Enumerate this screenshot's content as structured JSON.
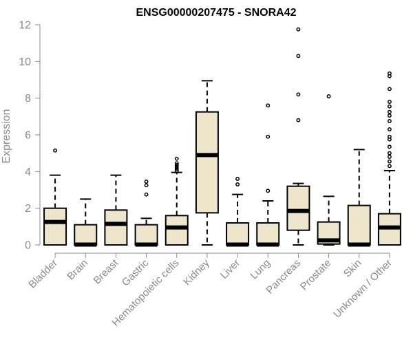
{
  "chart_data": {
    "type": "box",
    "title": "ENSG00000207475 - SNORA42",
    "xlabel": "",
    "ylabel": "Expression",
    "ylim": [
      0,
      12
    ],
    "yticks": [
      0,
      2,
      4,
      6,
      8,
      10,
      12
    ],
    "grid": false,
    "legend": "none",
    "box_fill": "#ede6cc",
    "box_stroke": "#000000",
    "categories": [
      "Bladder",
      "Brain",
      "Breast",
      "Gastric",
      "Hematopoietic cells",
      "Kidney",
      "Liver",
      "Lung",
      "Pancreas",
      "Prostate",
      "Skin",
      "Unknown / Other"
    ],
    "boxes": [
      {
        "category": "Bladder",
        "whisker_low": 0,
        "q1": 0,
        "median": 1.25,
        "q3": 2.0,
        "whisker_high": 3.8,
        "outliers": [
          5.15
        ]
      },
      {
        "category": "Brain",
        "whisker_low": 0,
        "q1": 0,
        "median": 0.02,
        "q3": 1.1,
        "whisker_high": 2.5,
        "outliers": []
      },
      {
        "category": "Breast",
        "whisker_low": 0,
        "q1": 0,
        "median": 1.15,
        "q3": 1.9,
        "whisker_high": 3.8,
        "outliers": []
      },
      {
        "category": "Gastric",
        "whisker_low": 0,
        "q1": 0,
        "median": 0.02,
        "q3": 1.1,
        "whisker_high": 1.45,
        "outliers": [
          2.75,
          3.25,
          3.45
        ]
      },
      {
        "category": "Hematopoietic cells",
        "whisker_low": 0,
        "q1": 0,
        "median": 0.95,
        "q3": 1.6,
        "whisker_high": 3.95,
        "outliers": [
          4.05,
          4.15,
          4.25,
          4.35,
          4.45,
          4.7
        ]
      },
      {
        "category": "Kidney",
        "whisker_low": 0,
        "q1": 1.75,
        "median": 4.9,
        "q3": 7.25,
        "whisker_high": 8.95,
        "outliers": []
      },
      {
        "category": "Liver",
        "whisker_low": 0,
        "q1": 0,
        "median": 0.02,
        "q3": 1.2,
        "whisker_high": 2.75,
        "outliers": [
          3.3,
          3.6
        ]
      },
      {
        "category": "Lung",
        "whisker_low": 0,
        "q1": 0,
        "median": 0.02,
        "q3": 1.2,
        "whisker_high": 2.4,
        "outliers": [
          2.95,
          5.9,
          7.6
        ]
      },
      {
        "category": "Pancreas",
        "whisker_low": 0,
        "q1": 0.8,
        "median": 1.85,
        "q3": 3.2,
        "whisker_high": 3.35,
        "outliers": [
          6.8,
          8.2,
          10.3,
          11.75
        ]
      },
      {
        "category": "Prostate",
        "whisker_low": 0,
        "q1": 0.05,
        "median": 0.25,
        "q3": 1.25,
        "whisker_high": 2.65,
        "outliers": [
          8.1
        ]
      },
      {
        "category": "Skin",
        "whisker_low": 0,
        "q1": 0,
        "median": 0.02,
        "q3": 2.15,
        "whisker_high": 5.2,
        "outliers": []
      },
      {
        "category": "Unknown / Other",
        "whisker_low": 0,
        "q1": 0,
        "median": 0.95,
        "q3": 1.7,
        "whisker_high": 4.05,
        "outliers": [
          4.3,
          4.55,
          4.8,
          5.0,
          5.35,
          5.75,
          5.9,
          6.3,
          6.75,
          7.05,
          7.25,
          7.55,
          7.8,
          8.5,
          9.2,
          9.35
        ]
      }
    ]
  }
}
